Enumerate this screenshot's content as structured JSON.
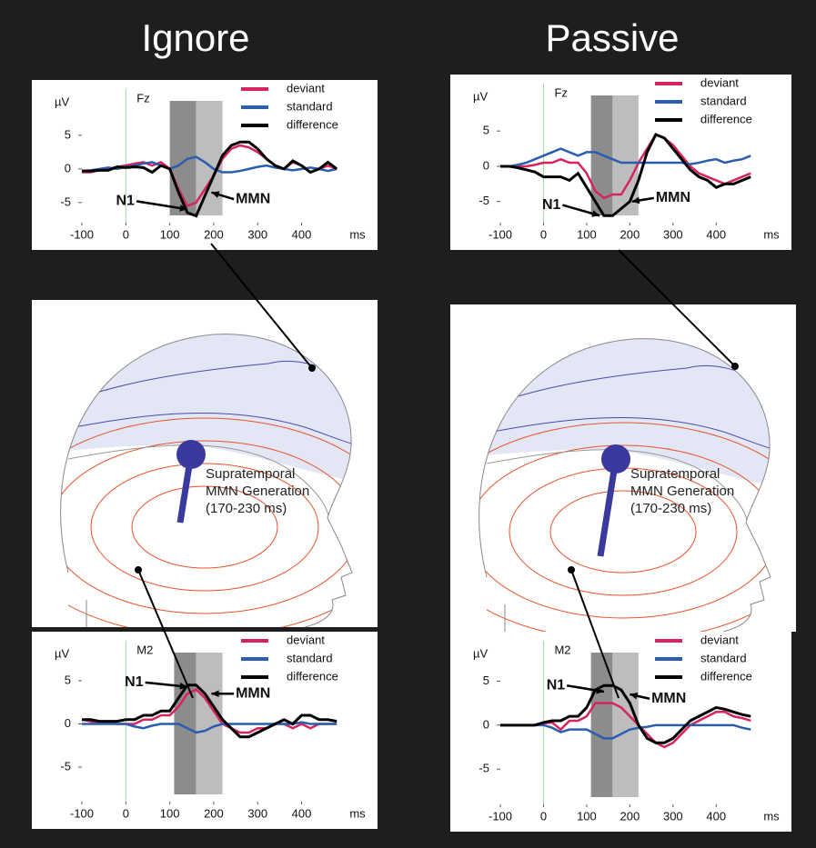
{
  "columns": [
    {
      "title": "Ignore"
    },
    {
      "title": "Passive"
    }
  ],
  "heads": [
    {
      "lines": [
        "Supratemporal",
        "MMN Generation",
        "(170-230 ms)"
      ]
    },
    {
      "lines": [
        "Supratemporal",
        "MMN Generation",
        "(170-230 ms)"
      ]
    }
  ],
  "chart_data": [
    {
      "type": "line",
      "channel": "Fz",
      "y_label": "µV",
      "x_unit": "ms",
      "annotations": [
        "N1",
        "MMN"
      ],
      "x": [
        -100,
        -80,
        -60,
        -40,
        -20,
        0,
        20,
        40,
        60,
        80,
        100,
        120,
        140,
        160,
        180,
        200,
        220,
        240,
        260,
        280,
        300,
        320,
        340,
        360,
        380,
        400,
        420,
        440,
        460,
        480
      ],
      "xlim": [
        -100,
        490
      ],
      "xticks": [
        -100,
        0,
        100,
        200,
        300,
        400
      ],
      "ylim": [
        -8,
        8.5
      ],
      "yticks": [
        5,
        0,
        -5
      ],
      "windows": [
        {
          "start": 100,
          "end": 160,
          "color": "#8c8c8c"
        },
        {
          "start": 160,
          "end": 220,
          "color": "#bdbdbd"
        }
      ],
      "series": [
        {
          "name": "deviant",
          "color": "#d6245f",
          "values": [
            -0.5,
            -0.5,
            -0.2,
            0,
            0.3,
            0.5,
            0.8,
            1,
            0.5,
            1,
            0,
            -3,
            -5.5,
            -5,
            -3,
            -1,
            1.5,
            3,
            3.5,
            3.2,
            2.5,
            1.5,
            0.5,
            0,
            1,
            0.5,
            -0.5,
            0,
            0.5,
            0
          ]
        },
        {
          "name": "standard",
          "color": "#2a5db0",
          "values": [
            -0.3,
            -0.2,
            0,
            0.2,
            0,
            0.3,
            0.5,
            0.8,
            1,
            0.5,
            0,
            0.5,
            1.5,
            1.8,
            1,
            0,
            -0.5,
            -0.5,
            -0.3,
            0,
            0.3,
            0.5,
            0.2,
            0,
            -0.2,
            0,
            0.2,
            0,
            -0.3,
            0
          ]
        },
        {
          "name": "difference",
          "color": "#000000",
          "values": [
            -0.3,
            -0.3,
            -0.2,
            -0.2,
            0.3,
            0.2,
            0.3,
            0.2,
            -0.5,
            0.5,
            0,
            -3.5,
            -6.5,
            -7,
            -4,
            -1,
            2,
            3.5,
            4,
            4,
            3,
            1.5,
            0.5,
            0,
            1.2,
            0.5,
            -0.5,
            0,
            1,
            0
          ]
        }
      ]
    },
    {
      "type": "line",
      "channel": "Fz",
      "y_label": "µV",
      "x_unit": "ms",
      "annotations": [
        "N1",
        "MMN"
      ],
      "x": [
        -100,
        -80,
        -60,
        -40,
        -20,
        0,
        20,
        40,
        60,
        80,
        100,
        120,
        140,
        160,
        180,
        200,
        220,
        240,
        260,
        280,
        300,
        320,
        340,
        360,
        380,
        400,
        420,
        440,
        460,
        480
      ],
      "xlim": [
        -100,
        490
      ],
      "xticks": [
        -100,
        0,
        100,
        200,
        300,
        400
      ],
      "ylim": [
        -8,
        8.5
      ],
      "yticks": [
        5,
        0,
        -5
      ],
      "windows": [
        {
          "start": 110,
          "end": 160,
          "color": "#8c8c8c"
        },
        {
          "start": 160,
          "end": 220,
          "color": "#bdbdbd"
        }
      ],
      "series": [
        {
          "name": "deviant",
          "color": "#d6245f",
          "values": [
            0,
            0,
            0,
            0,
            0.2,
            0.5,
            0.5,
            1,
            0.5,
            0.5,
            -1,
            -3.5,
            -4.5,
            -4,
            -4,
            -2,
            0.5,
            2.5,
            4.5,
            4,
            3,
            1.5,
            0,
            -1,
            -1.5,
            -2,
            -2.5,
            -2,
            -1.5,
            -1
          ]
        },
        {
          "name": "standard",
          "color": "#2a5db0",
          "values": [
            0,
            0,
            0.2,
            0.5,
            1,
            1.5,
            2,
            2.5,
            2,
            1.5,
            2,
            2,
            1.5,
            1,
            0.5,
            0.5,
            0.5,
            0.5,
            0.5,
            0.5,
            0.5,
            0.5,
            0.3,
            0.5,
            0.8,
            1,
            0.5,
            0.8,
            1,
            1.5
          ]
        },
        {
          "name": "difference",
          "color": "#000000",
          "values": [
            0,
            0,
            -0.2,
            -0.5,
            -0.8,
            -1.5,
            -1.5,
            -1.5,
            -2,
            -1,
            -3,
            -5,
            -7,
            -7,
            -6,
            -5,
            -2,
            2,
            4.5,
            4,
            2.5,
            1,
            -0.5,
            -1.5,
            -2,
            -3,
            -2.5,
            -2.5,
            -2,
            -1.5
          ]
        }
      ]
    },
    {
      "type": "line",
      "channel": "M2",
      "y_label": "µV",
      "x_unit": "ms",
      "annotations": [
        "N1",
        "MMN"
      ],
      "x": [
        -100,
        -80,
        -60,
        -40,
        -20,
        0,
        20,
        40,
        60,
        80,
        100,
        120,
        140,
        160,
        180,
        200,
        220,
        240,
        260,
        280,
        300,
        320,
        340,
        360,
        380,
        400,
        420,
        440,
        460,
        480
      ],
      "xlim": [
        -100,
        490
      ],
      "xticks": [
        -100,
        0,
        100,
        200,
        300,
        400
      ],
      "ylim": [
        -9,
        7
      ],
      "yticks": [
        5,
        0,
        -5
      ],
      "windows": [
        {
          "start": 110,
          "end": 160,
          "color": "#8c8c8c"
        },
        {
          "start": 160,
          "end": 220,
          "color": "#bdbdbd"
        }
      ],
      "series": [
        {
          "name": "deviant",
          "color": "#d6245f",
          "values": [
            0.5,
            0.3,
            0,
            0.2,
            0,
            0,
            0,
            0.5,
            0.5,
            1,
            1,
            2,
            3.5,
            4,
            3,
            1.5,
            0,
            -0.5,
            -1,
            -1,
            -0.5,
            -0.5,
            0,
            0,
            -0.5,
            0,
            -0.5,
            0,
            0,
            0
          ]
        },
        {
          "name": "standard",
          "color": "#2a5db0",
          "values": [
            0,
            0,
            0,
            0,
            0,
            0,
            -0.3,
            -0.5,
            -0.2,
            0,
            0,
            0,
            -0.5,
            -1,
            -0.8,
            -0.3,
            0,
            0,
            0,
            0,
            0,
            0,
            0,
            0,
            0,
            0.2,
            0,
            0,
            0,
            0
          ]
        },
        {
          "name": "difference",
          "color": "#000000",
          "values": [
            0.5,
            0.5,
            0.3,
            0.3,
            0.3,
            0.5,
            0.5,
            1,
            1,
            1.5,
            1.5,
            3,
            4.5,
            4.5,
            3.5,
            2,
            0.5,
            -0.5,
            -1.5,
            -1.5,
            -1,
            -0.5,
            0,
            0.5,
            0,
            1,
            1,
            0.5,
            0.5,
            0.3
          ]
        }
      ]
    },
    {
      "type": "line",
      "channel": "M2",
      "y_label": "µV",
      "x_unit": "ms",
      "annotations": [
        "N1",
        "MMN"
      ],
      "x": [
        -100,
        -80,
        -60,
        -40,
        -20,
        0,
        20,
        40,
        60,
        80,
        100,
        120,
        140,
        160,
        180,
        200,
        220,
        240,
        260,
        280,
        300,
        320,
        340,
        360,
        380,
        400,
        420,
        440,
        460,
        480
      ],
      "xlim": [
        -100,
        490
      ],
      "xticks": [
        -100,
        0,
        100,
        200,
        300,
        400
      ],
      "ylim": [
        -9,
        7
      ],
      "yticks": [
        5,
        0,
        -5
      ],
      "windows": [
        {
          "start": 110,
          "end": 160,
          "color": "#8c8c8c"
        },
        {
          "start": 160,
          "end": 220,
          "color": "#bdbdbd"
        }
      ],
      "series": [
        {
          "name": "deviant",
          "color": "#d6245f",
          "values": [
            0,
            0,
            0,
            0,
            0,
            0.2,
            0.3,
            -0.5,
            0.5,
            0.5,
            1,
            2.5,
            2.5,
            2.5,
            2,
            1,
            0,
            -1,
            -2,
            -2.5,
            -2,
            -1,
            0,
            0.5,
            1,
            1.5,
            1.5,
            1,
            0.8,
            0.5
          ]
        },
        {
          "name": "standard",
          "color": "#2a5db0",
          "values": [
            0,
            0,
            0,
            0,
            0,
            0,
            -0.3,
            -0.8,
            -0.5,
            -0.5,
            -0.5,
            -1,
            -1.5,
            -1.5,
            -1,
            -0.5,
            -0.3,
            -0.2,
            0,
            0,
            0,
            0,
            0,
            0,
            0,
            0,
            0,
            0,
            -0.3,
            -0.5
          ]
        },
        {
          "name": "difference",
          "color": "#000000",
          "values": [
            0,
            0,
            0,
            0,
            0,
            0.3,
            0.5,
            0.5,
            1,
            1,
            2,
            4,
            4.5,
            4.5,
            4,
            2.5,
            0,
            -1.5,
            -2,
            -2,
            -1.5,
            -0.5,
            0.5,
            1,
            1.5,
            2,
            1.8,
            1.5,
            1.2,
            1
          ]
        }
      ]
    }
  ]
}
